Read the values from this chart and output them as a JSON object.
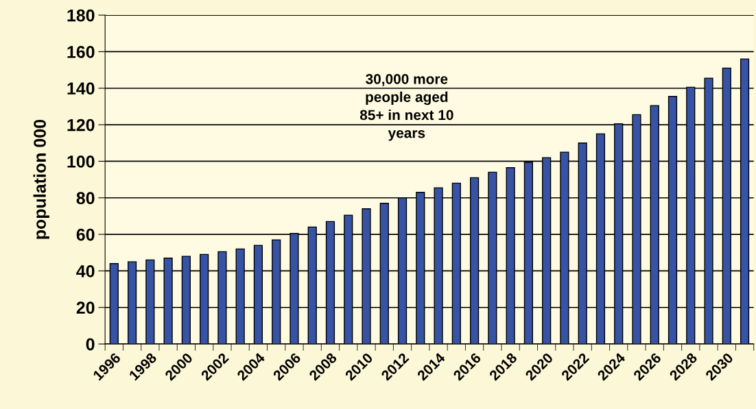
{
  "chart_data": {
    "type": "bar",
    "ylabel": "population 000",
    "categories": [
      "1996",
      null,
      "1998",
      null,
      "2000",
      null,
      "2002",
      null,
      "2004",
      null,
      "2006",
      null,
      "2008",
      null,
      "2010",
      null,
      "2012",
      null,
      "2014",
      null,
      "2016",
      null,
      "2018",
      null,
      "2020",
      null,
      "2022",
      null,
      "2024",
      null,
      "2026",
      null,
      "2028",
      null,
      "2030",
      null
    ],
    "values": [
      44,
      45,
      46,
      47,
      48,
      49,
      50.5,
      52,
      54,
      57,
      60.5,
      64,
      67,
      70.5,
      74,
      77,
      80,
      83,
      85.5,
      88,
      91,
      94,
      96.5,
      99.5,
      102,
      105,
      110,
      115,
      120.5,
      125.5,
      130.5,
      135.5,
      140.5,
      145.5,
      151,
      156
    ],
    "color": "#3653a5",
    "ylim": [
      0,
      180
    ],
    "yticks": [
      0,
      20,
      40,
      60,
      80,
      100,
      120,
      140,
      160,
      180
    ],
    "grid": "y",
    "legend": false,
    "annotations": [
      "30,000 more\npeople aged\n85+ in next 10\nyears"
    ]
  }
}
